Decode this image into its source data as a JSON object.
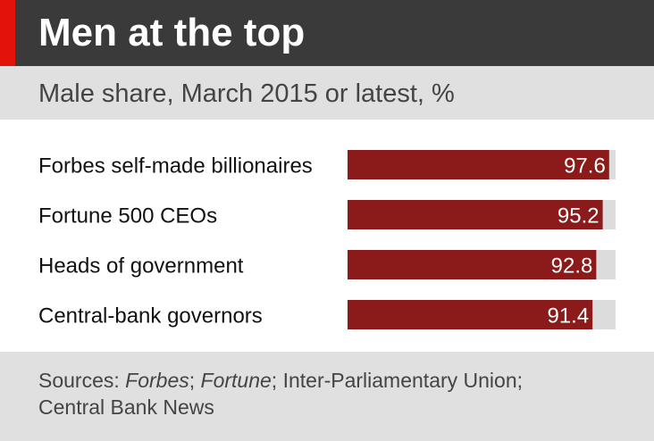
{
  "title": "Men at the top",
  "subtitle": "Male share, March 2015 or latest, %",
  "source": {
    "prefix": "Sources: ",
    "forbes": "Forbes",
    "sep1": "; ",
    "fortune": "Fortune",
    "sep2": "; Inter-Parliamentary Union;",
    "line2": "Central Bank News"
  },
  "colors": {
    "accent": "#e3120b",
    "title_bar": "#3a3a3a",
    "bar": "#8b1a1a",
    "bar_track": "#dcdcdc",
    "panel": "#e0e0e0"
  },
  "chart_data": {
    "type": "bar",
    "orientation": "horizontal",
    "categories": [
      "Forbes self-made billionaires",
      "Fortune 500 CEOs",
      "Heads of government",
      "Central-bank governors"
    ],
    "values": [
      97.6,
      95.2,
      92.8,
      91.4
    ],
    "value_labels": [
      "97.6",
      "95.2",
      "92.8",
      "91.4"
    ],
    "xlim": [
      0,
      100
    ],
    "grid": false
  }
}
